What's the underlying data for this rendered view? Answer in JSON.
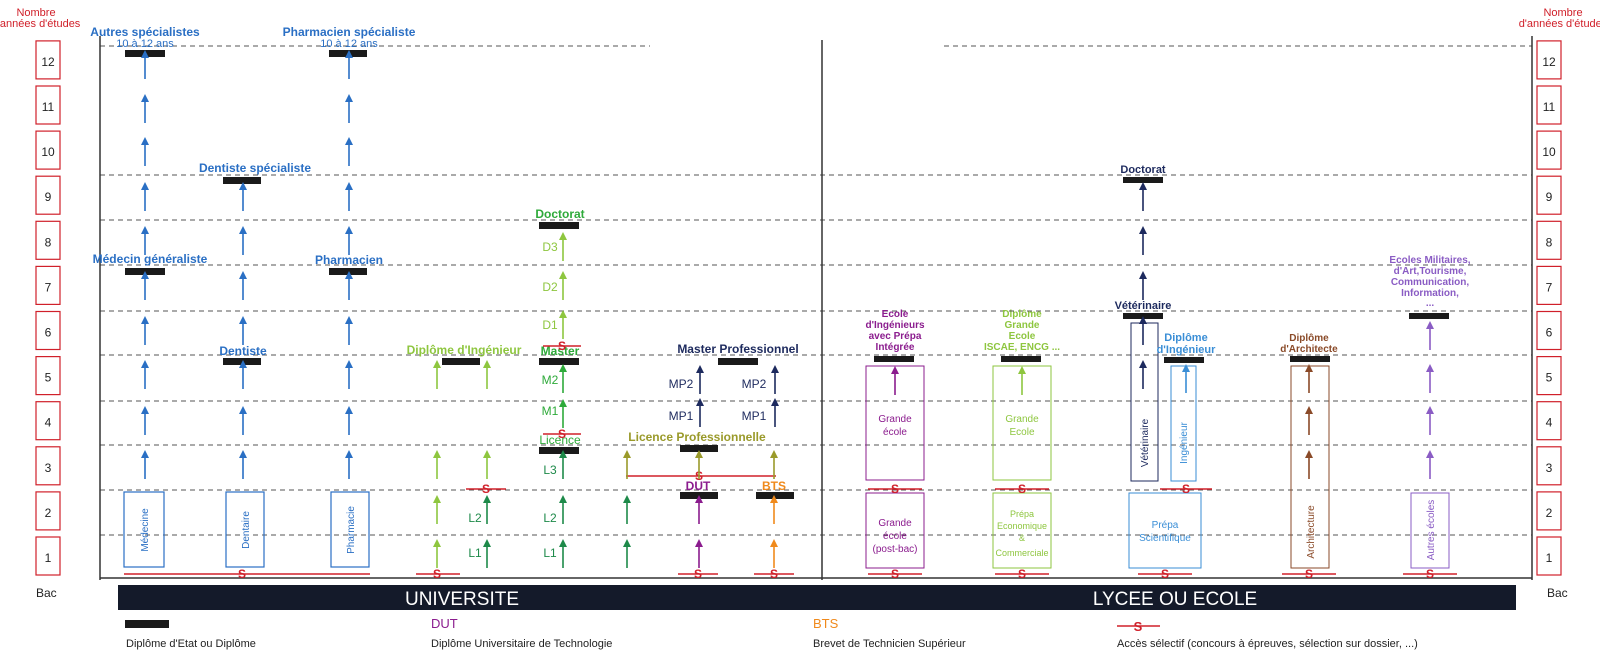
{
  "years_header": "Nombre d'années d'études",
  "years": [
    "1",
    "2",
    "3",
    "4",
    "5",
    "6",
    "7",
    "8",
    "9",
    "10",
    "11",
    "12"
  ],
  "bac": "Bac",
  "bands": {
    "left": "UNIVERSITE",
    "right": "LYCEE OU ECOLE"
  },
  "selective_mark": "S",
  "colors": {
    "red": "#d0202a",
    "blue": "#2a6fc4",
    "lime": "#8ec63f",
    "green": "#1e8a4a",
    "navy": "#1d2a5e",
    "purple": "#8b1c8e",
    "orange": "#f08a1c",
    "olive": "#9a9a2a",
    "brown": "#8a4a28",
    "lavender": "#8a5cc4",
    "skyblue": "#3a8ed6",
    "black": "#1a1a1a",
    "band": "#141a2a"
  },
  "diplomas": {
    "autres_specialistes": "Autres spécialistes",
    "autres_specialistes_dur": "10 à 12 ans",
    "pharmacien_specialiste": "Pharmacien spécialiste",
    "pharmacien_specialiste_dur": "10 à 12 ans",
    "dentiste_specialiste": "Dentiste spécialiste",
    "medecin_generaliste": "Médecin généraliste",
    "pharmacien": "Pharmacien",
    "dentiste": "Dentiste",
    "diplome_ingenieur": "Diplôme d'Ingénieur",
    "doctorat": "Doctorat",
    "master": "Master",
    "licence": "Licence",
    "master_pro": "Master Professionnel",
    "licence_pro": "Licence Professionnelle",
    "dut": "DUT",
    "bts": "BTS",
    "doctorat_r": "Doctorat",
    "veterinaire": "Vétérinaire",
    "diplome_ingenieur_r": [
      "Diplôme",
      "d'Ingénieur"
    ],
    "ecole_ing": [
      "Ecole",
      "d'Ingénieurs",
      "avec Prépa",
      "Intégrée"
    ],
    "grande_ecole_dip": [
      "Diplôme",
      "Grande",
      "Ecole",
      "ISCAE, ENCG ..."
    ],
    "architecte": [
      "Diplôme",
      "d'Architecte"
    ],
    "militaires": [
      "Ecoles Militaires,",
      "d'Art,Tourisme,",
      "Communication,",
      "Information,",
      "..."
    ]
  },
  "stages": {
    "d3": "D3",
    "d2": "D2",
    "d1": "D1",
    "m2": "M2",
    "m1": "M1",
    "l3": "L3",
    "l2": "L2",
    "l1": "L1",
    "mp2": "MP2",
    "mp1": "MP1"
  },
  "boxes": {
    "medecine": "Médecine",
    "dentaire": "Dentaire",
    "pharmacie": "Pharmacie",
    "grande_ecole_bac": [
      "Grande",
      "école",
      "(post-bac)"
    ],
    "grande_ecole_purple": [
      "Grande",
      "école"
    ],
    "grande_ecole_lime": [
      "Grande",
      "Ecole"
    ],
    "prepa_eco": [
      "Prépa",
      "Economique",
      "&",
      "Commerciale"
    ],
    "prepa_sci": [
      "Prépa",
      "Scientifique"
    ],
    "veterinaire_box": "Vétérinaire",
    "ingenieur_box": "Ingénieur",
    "architecture": "Architecture",
    "autres_ecoles": "Autres écoles"
  },
  "legend": {
    "diplome_label": "Diplôme d'Etat ou Diplôme",
    "dut_title": "DUT",
    "dut_label": "Diplôme Universitaire de Technologie",
    "bts_title": "BTS",
    "bts_label": "Brevet de Technicien Supérieur",
    "selective_label": "Accès sélectif (concours à épreuves, sélection sur dossier, ...)"
  }
}
